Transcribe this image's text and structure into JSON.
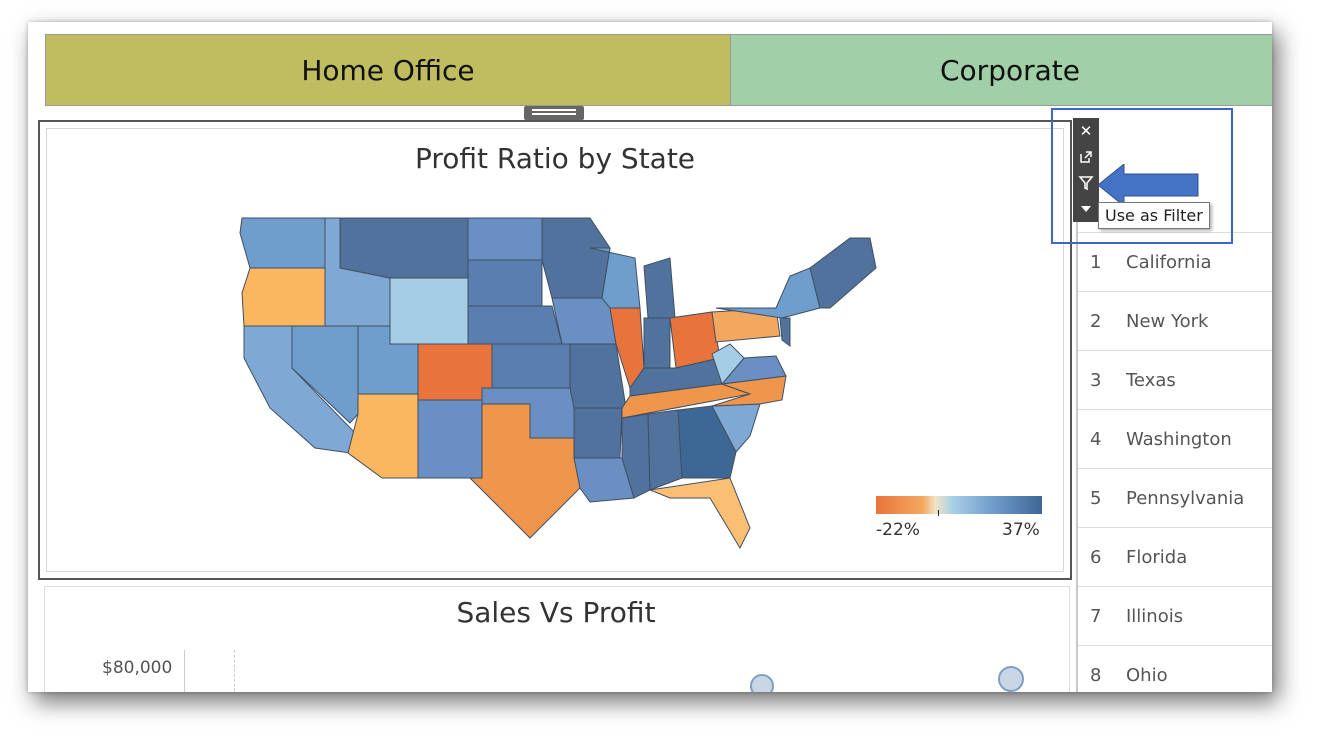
{
  "segments": {
    "home_office": "Home Office",
    "corporate": "Corporate"
  },
  "map": {
    "title": "Profit Ratio by State",
    "legend": {
      "min_label": "-22%",
      "max_label": "37%",
      "colors": [
        "#e8743b",
        "#f4a85f",
        "#a9d0e8",
        "#3d6795"
      ]
    }
  },
  "toolbar": {
    "close_icon": "close-icon",
    "popout_icon": "popout-icon",
    "filter_icon": "filter-icon",
    "menu_icon": "dropdown-arrow-icon",
    "tooltip": "Use as Filter"
  },
  "ranking": [
    {
      "rank": "1",
      "state": "California"
    },
    {
      "rank": "2",
      "state": "New York"
    },
    {
      "rank": "3",
      "state": "Texas"
    },
    {
      "rank": "4",
      "state": "Washington"
    },
    {
      "rank": "5",
      "state": "Pennsylvania"
    },
    {
      "rank": "6",
      "state": "Florida"
    },
    {
      "rank": "7",
      "state": "Illinois"
    },
    {
      "rank": "8",
      "state": "Ohio"
    }
  ],
  "scatter": {
    "title": "Sales Vs Profit",
    "y_axis_tick": "$80,000"
  },
  "colors": {
    "callout_border": "#3d68c2",
    "arrow_fill": "#4472c4",
    "home_office": "#c0bc60",
    "corporate": "#a1cfa7"
  }
}
